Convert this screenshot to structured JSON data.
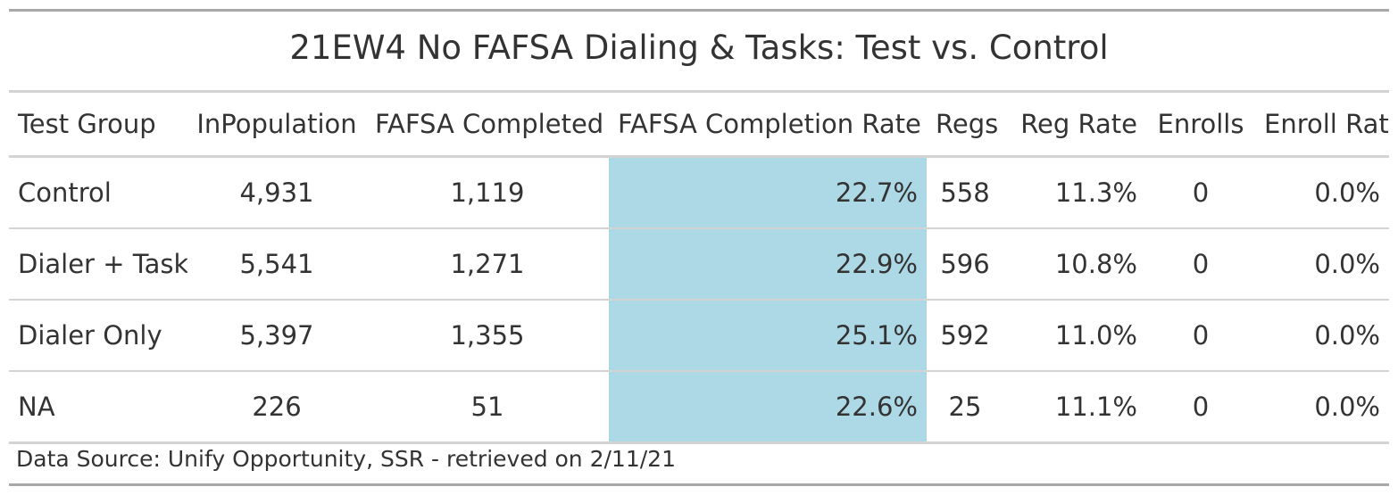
{
  "title": "21EW4 No FAFSA Dialing & Tasks: Test vs. Control",
  "columns": [
    "Test Group",
    "InPopulation",
    "FAFSA Completed",
    "FAFSA Completion Rate",
    "Regs",
    "Reg Rate",
    "Enrolls",
    "Enroll Rate"
  ],
  "rows": [
    [
      "Control",
      "4,931",
      "1,119",
      "22.7%",
      "558",
      "11.3%",
      "0",
      "0.0%"
    ],
    [
      "Dialer + Task",
      "5,541",
      "1,271",
      "22.9%",
      "596",
      "10.8%",
      "0",
      "0.0%"
    ],
    [
      "Dialer Only",
      "5,397",
      "1,355",
      "25.1%",
      "592",
      "11.0%",
      "0",
      "0.0%"
    ],
    [
      "NA",
      "226",
      "51",
      "22.6%",
      "25",
      "11.1%",
      "0",
      "0.0%"
    ]
  ],
  "highlight_column_color": "#add8e6",
  "source_note": "Data Source: Unify Opportunity, SSR - retrieved on 2/11/21"
}
